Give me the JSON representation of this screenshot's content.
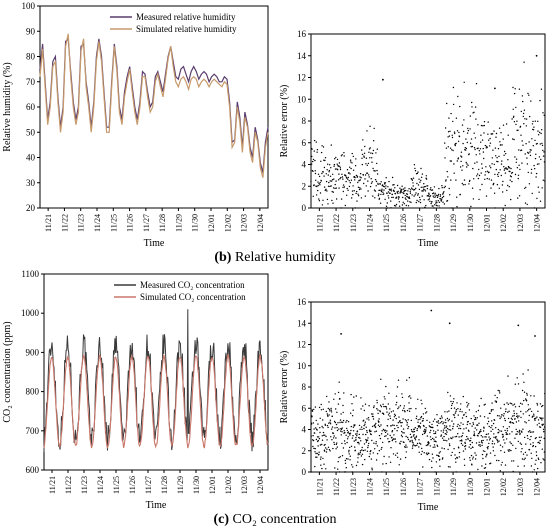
{
  "captions": {
    "rh_letter": "(b)",
    "rh_text": "Relative humidity",
    "co2_letter": "(c)",
    "co2_text": "CO₂ concentration"
  },
  "chart_data": [
    {
      "id": "rh_timeseries",
      "type": "line",
      "xlabel": "Time",
      "ylabel": "Relative humidity (%)",
      "ylim": [
        20,
        100
      ],
      "yticks": [
        20,
        30,
        40,
        50,
        60,
        70,
        80,
        90,
        100
      ],
      "xticks": [
        "11/21",
        "11/22",
        "11/23",
        "11/24",
        "11/25",
        "11/26",
        "11/27",
        "11/28",
        "11/29",
        "11/30",
        "12/01",
        "12/02",
        "12/03",
        "12/04"
      ],
      "legend_position": "top-center",
      "series": [
        {
          "name": "Measured relative humidity",
          "color": "#5a3d6e",
          "values": [
            75,
            85,
            70,
            55,
            62,
            78,
            80,
            64,
            52,
            60,
            86,
            87,
            74,
            62,
            55,
            60,
            84,
            85,
            70,
            62,
            52,
            62,
            80,
            87,
            80,
            66,
            52,
            52,
            70,
            85,
            76,
            60,
            55,
            66,
            72,
            76,
            68,
            60,
            55,
            62,
            74,
            73,
            66,
            60,
            62,
            72,
            74,
            70,
            66,
            73,
            80,
            84,
            78,
            72,
            71,
            75,
            76,
            73,
            70,
            74,
            76,
            74,
            71,
            73,
            74,
            73,
            70,
            72,
            73,
            72,
            70,
            70,
            72,
            71,
            62,
            46,
            47,
            62,
            56,
            44,
            58,
            53,
            44,
            40,
            52,
            47,
            38,
            34,
            46,
            52
          ]
        },
        {
          "name": "Simulated relative humidity",
          "color": "#c79a6b",
          "values": [
            72,
            83,
            68,
            53,
            60,
            76,
            78,
            62,
            50,
            58,
            84,
            89,
            72,
            60,
            53,
            58,
            82,
            87,
            68,
            60,
            50,
            60,
            78,
            86,
            78,
            64,
            50,
            50,
            68,
            84,
            74,
            58,
            53,
            64,
            70,
            75,
            66,
            58,
            53,
            60,
            72,
            72,
            64,
            58,
            60,
            70,
            73,
            68,
            64,
            71,
            79,
            84,
            76,
            70,
            68,
            71,
            72,
            70,
            67,
            71,
            72,
            71,
            68,
            70,
            71,
            70,
            68,
            70,
            71,
            70,
            69,
            68,
            70,
            69,
            60,
            44,
            46,
            60,
            54,
            42,
            56,
            52,
            42,
            38,
            50,
            46,
            36,
            32,
            44,
            50
          ]
        }
      ]
    },
    {
      "id": "rh_error",
      "type": "scatter",
      "xlabel": "Time",
      "ylabel": "Relative error (%)",
      "ylim": [
        0,
        16
      ],
      "yticks": [
        0,
        2,
        4,
        6,
        8,
        10,
        12,
        14,
        16
      ],
      "xticks": [
        "11/21",
        "11/22",
        "11/23",
        "11/24",
        "11/25",
        "11/26",
        "11/27",
        "11/28",
        "11/29",
        "11/30",
        "12/01",
        "12/02",
        "12/03",
        "12/04"
      ],
      "daily_mean_error": [
        3.0,
        3.0,
        2.5,
        3.5,
        1.5,
        1.2,
        2.0,
        1.0,
        5.5,
        6.0,
        4.5,
        4.0,
        6.0,
        5.0
      ],
      "peak_errors": [
        [
          4.3,
          11.8
        ],
        [
          11.0,
          11.0
        ],
        [
          13.5,
          14.0
        ]
      ]
    },
    {
      "id": "co2_timeseries",
      "type": "line",
      "xlabel": "Time",
      "ylabel": "CO₂ concentration (ppm)",
      "ylim": [
        600,
        1100
      ],
      "yticks": [
        600,
        700,
        800,
        900,
        1000,
        1100
      ],
      "xticks": [
        "11/21",
        "11/22",
        "11/23",
        "11/24",
        "11/25",
        "11/26",
        "11/27",
        "11/28",
        "11/29",
        "11/30",
        "12/01",
        "12/02",
        "12/03",
        "12/04"
      ],
      "legend_position": "top-center",
      "series": [
        {
          "name": "Measured CO₂ concentration",
          "color": "#3a3a3a",
          "daily_min": 680,
          "daily_max": 920,
          "peak": 1010
        },
        {
          "name": "Simulated CO₂ concentration",
          "color": "#c9776a",
          "daily_min": 660,
          "daily_max": 890
        }
      ]
    },
    {
      "id": "co2_error",
      "type": "scatter",
      "xlabel": "Time",
      "ylabel": "Relative error (%)",
      "ylim": [
        0,
        16
      ],
      "yticks": [
        0,
        2,
        4,
        6,
        8,
        10,
        12,
        14,
        16
      ],
      "xticks": [
        "11/21",
        "11/22",
        "11/23",
        "11/24",
        "11/25",
        "11/26",
        "11/27",
        "11/28",
        "11/29",
        "11/30",
        "12/01",
        "12/02",
        "12/03",
        "12/04"
      ],
      "daily_mean_error": [
        3.5,
        4.0,
        3.5,
        3.5,
        4.0,
        4.0,
        3.5,
        3.5,
        4.0,
        3.5,
        3.5,
        4.0,
        4.5,
        4.0
      ],
      "peak_errors": [
        [
          1.8,
          13.0
        ],
        [
          7.2,
          15.2
        ],
        [
          8.3,
          14.0
        ],
        [
          12.4,
          13.8
        ],
        [
          13.4,
          12.8
        ]
      ]
    }
  ]
}
